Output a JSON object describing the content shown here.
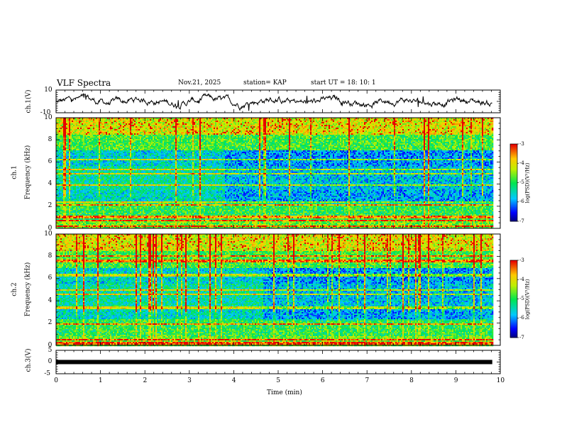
{
  "header": {
    "title": "VLF Spectra",
    "date": "Nov.21, 2025",
    "station": "station= KAP",
    "start": "start  UT =   18: 10: 1"
  },
  "chart_data": [
    {
      "type": "line",
      "panel": "ch1_waveform",
      "ylabel": "ch.1(V)",
      "ylim": [
        -10,
        10
      ],
      "yticks": [
        "10",
        "-10"
      ],
      "xlim": [
        0,
        10
      ]
    },
    {
      "type": "heatmap",
      "panel": "ch1_spectrogram",
      "ylabel": "ch.1\nFrequency (kHz)",
      "ylabel_lines": [
        "ch.1",
        "Frequency (kHz)"
      ],
      "ylim": [
        0,
        10
      ],
      "yticks": [
        "0",
        "2",
        "4",
        "6",
        "8",
        "10"
      ],
      "xlim": [
        0,
        9.82
      ],
      "colorbar": {
        "label": "log(PSD)(V²/Hz)",
        "range": [
          -7,
          -3
        ],
        "ticks": [
          "-3",
          "-4",
          "-5",
          "-6",
          "-7"
        ]
      },
      "bands_khz": [
        0.2,
        0.7,
        1.0,
        2.1,
        2.4,
        3.9,
        4.9,
        5.3,
        6.2
      ],
      "transition_min": 3.8
    },
    {
      "type": "heatmap",
      "panel": "ch2_spectrogram",
      "ylabel": "ch.2\nFrequency (kHz)",
      "ylabel_lines": [
        "ch.2",
        "Frequency (kHz)"
      ],
      "ylim": [
        0,
        10
      ],
      "yticks": [
        "0",
        "2",
        "4",
        "6",
        "8",
        "10"
      ],
      "xlim": [
        0,
        9.82
      ],
      "colorbar": {
        "label": "log(PSD)(V²/Hz)",
        "range": [
          -7,
          -3
        ],
        "ticks": [
          "-3",
          "-4",
          "-5",
          "-6",
          "-7"
        ]
      },
      "bands_khz": [
        0.2,
        0.5,
        1.9,
        3.4,
        4.6,
        5.0,
        6.3,
        7.6,
        8.0
      ],
      "transition_min": 4.65
    },
    {
      "type": "line",
      "panel": "ch3_waveform",
      "ylabel": "ch.3(V)",
      "ylim": [
        -5,
        5
      ],
      "yticks": [
        "5",
        "0",
        "-5"
      ],
      "level_v": 0,
      "xlim": [
        0,
        10
      ]
    }
  ],
  "xaxis": {
    "label": "Time  (min)",
    "range": [
      0,
      10
    ],
    "ticks": [
      "0",
      "1",
      "2",
      "3",
      "4",
      "5",
      "6",
      "7",
      "8",
      "9",
      "10"
    ]
  }
}
